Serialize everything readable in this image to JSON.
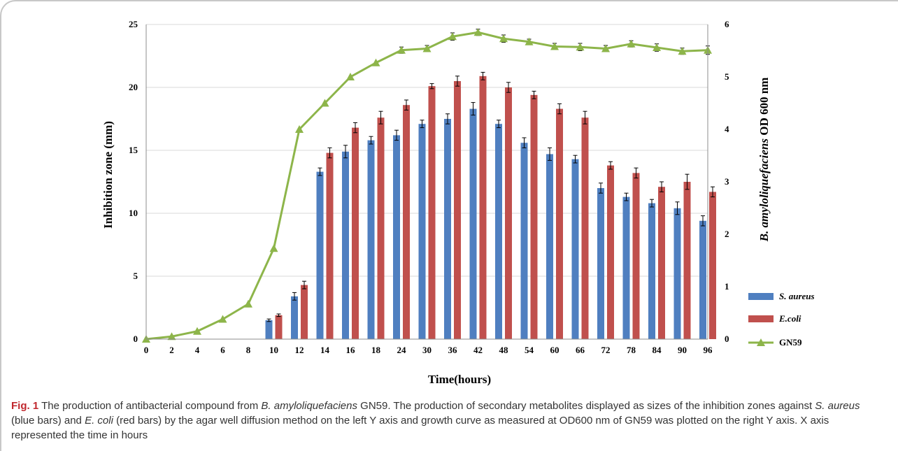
{
  "chart_data": {
    "type": "bar",
    "categories": [
      "0",
      "2",
      "4",
      "6",
      "8",
      "10",
      "12",
      "14",
      "16",
      "18",
      "24",
      "30",
      "36",
      "42",
      "48",
      "54",
      "60",
      "66",
      "72",
      "78",
      "84",
      "90",
      "96"
    ],
    "series": [
      {
        "name": "S. aureus",
        "kind": "bar",
        "axis": "left",
        "color": "#4f7fc0",
        "values": [
          0,
          0,
          0,
          0,
          0,
          1.5,
          3.4,
          13.3,
          14.9,
          15.8,
          16.2,
          17.1,
          17.5,
          18.3,
          17.1,
          15.6,
          14.7,
          14.3,
          12.0,
          11.3,
          10.8,
          10.4,
          9.4
        ],
        "errors": [
          0,
          0,
          0,
          0,
          0,
          0.1,
          0.3,
          0.3,
          0.5,
          0.3,
          0.4,
          0.3,
          0.4,
          0.5,
          0.3,
          0.4,
          0.5,
          0.3,
          0.4,
          0.3,
          0.3,
          0.5,
          0.4
        ]
      },
      {
        "name": "E.coli",
        "kind": "bar",
        "axis": "left",
        "color": "#c0504d",
        "values": [
          0,
          0,
          0,
          0,
          0,
          1.9,
          4.3,
          14.8,
          16.8,
          17.6,
          18.6,
          20.1,
          20.5,
          20.9,
          20.0,
          19.4,
          18.3,
          17.6,
          13.8,
          13.2,
          12.1,
          12.5,
          11.7
        ],
        "errors": [
          0,
          0,
          0,
          0,
          0,
          0.1,
          0.3,
          0.4,
          0.4,
          0.5,
          0.4,
          0.2,
          0.4,
          0.3,
          0.4,
          0.3,
          0.4,
          0.5,
          0.3,
          0.4,
          0.4,
          0.6,
          0.4
        ]
      },
      {
        "name": "GN59",
        "kind": "line",
        "axis": "right",
        "color": "#8db54a",
        "values": [
          0,
          0.05,
          0.15,
          0.38,
          0.67,
          1.73,
          4.0,
          4.5,
          5.0,
          5.27,
          5.51,
          5.54,
          5.77,
          5.85,
          5.73,
          5.67,
          5.58,
          5.57,
          5.54,
          5.63,
          5.56,
          5.49,
          5.51
        ],
        "errors": [
          0,
          0,
          0,
          0,
          0,
          0,
          0,
          0,
          0,
          0,
          0.06,
          0.06,
          0.07,
          0.06,
          0.07,
          0.05,
          0.06,
          0.07,
          0.06,
          0.06,
          0.07,
          0.06,
          0.08
        ]
      }
    ],
    "xlabel": "Time(hours)",
    "ylabel": "Inhibition  zone (mm)",
    "ylabel_right_italic": "B. amyloliquefaciens",
    "ylabel_right_rest": "  OD 600 nm",
    "ylim": [
      0,
      25
    ],
    "yticks": [
      0,
      5,
      10,
      15,
      20,
      25
    ],
    "ylim_right": [
      0,
      6
    ],
    "yticks_right": [
      0,
      1,
      2,
      3,
      4,
      5,
      6
    ],
    "grid": true,
    "legend_position": "right"
  },
  "caption": {
    "label": "Fig. 1",
    "text_parts": [
      {
        "t": "  The production of antibacterial compound from ",
        "i": false
      },
      {
        "t": "B. amyloliquefaciens",
        "i": true
      },
      {
        "t": " GN59. The production of secondary metabolites displayed as sizes of the inhibition zones against ",
        "i": false
      },
      {
        "t": "S. aureus",
        "i": true
      },
      {
        "t": " (blue bars) and ",
        "i": false
      },
      {
        "t": "E. coli",
        "i": true
      },
      {
        "t": " (red bars) by the agar well diffusion method on the left Y axis and growth curve as measured at OD600 nm of GN59 was plotted on the right Y axis. X axis represented the time in hours",
        "i": false
      }
    ]
  }
}
